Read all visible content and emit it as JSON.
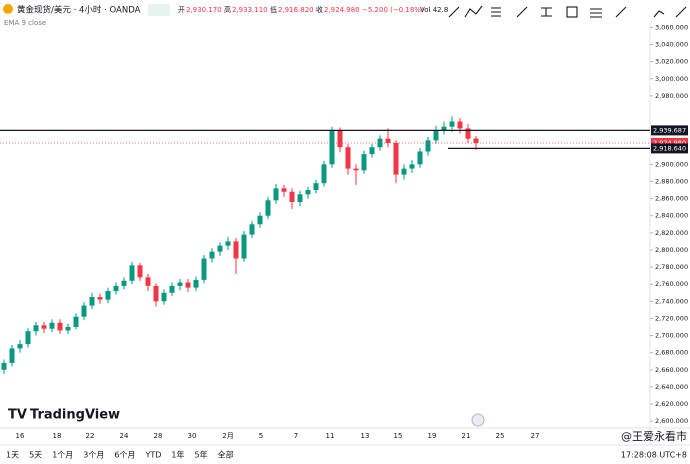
{
  "chart_data": {
    "type": "candlestick",
    "title": "黄金现货/美元 · 4小时 · OANDA",
    "ohlc_header": [
      {
        "label": "开",
        "value": "2,930.170"
      },
      {
        "label": "高",
        "value": "2,933.110"
      },
      {
        "label": "低",
        "value": "2,916.820"
      },
      {
        "label": "收",
        "value": "2,924.980"
      }
    ],
    "change": "−5.200 (−0.18%)",
    "volume": "Vol 42.8",
    "indicator": "EMA 9 close",
    "up_color": "#089981",
    "down_color": "#f23645",
    "open": [
      2660,
      2668,
      2685,
      2690,
      2705,
      2712,
      2708,
      2715,
      2706,
      2710,
      2722,
      2735,
      2745,
      2742,
      2752,
      2758,
      2764,
      2782,
      2768,
      2758,
      2740,
      2750,
      2758,
      2762,
      2756,
      2765,
      2790,
      2798,
      2805,
      2810,
      2790,
      2818,
      2830,
      2840,
      2858,
      2872,
      2868,
      2856,
      2865,
      2870,
      2878,
      2900,
      2940,
      2920,
      2895,
      2893,
      2912,
      2920,
      2930,
      2925,
      2888,
      2895,
      2900,
      2915,
      2928,
      2940,
      2944,
      2950,
      2942,
      2930.17
    ],
    "high": [
      2672,
      2689,
      2695,
      2709,
      2716,
      2716,
      2719,
      2719,
      2714,
      2726,
      2739,
      2750,
      2749,
      2756,
      2762,
      2768,
      2786,
      2785,
      2772,
      2761,
      2754,
      2762,
      2766,
      2766,
      2769,
      2794,
      2802,
      2809,
      2815,
      2814,
      2822,
      2834,
      2844,
      2862,
      2877,
      2876,
      2872,
      2869,
      2874,
      2882,
      2904,
      2944,
      2943,
      2924,
      2900,
      2916,
      2924,
      2934,
      2942,
      2928,
      2900,
      2905,
      2919,
      2932,
      2945,
      2950,
      2956,
      2954,
      2947,
      2933.11
    ],
    "low": [
      2655,
      2664,
      2680,
      2686,
      2700,
      2703,
      2704,
      2702,
      2702,
      2707,
      2718,
      2731,
      2737,
      2738,
      2748,
      2754,
      2760,
      2764,
      2752,
      2734,
      2736,
      2746,
      2753,
      2751,
      2752,
      2761,
      2785,
      2793,
      2800,
      2772,
      2786,
      2814,
      2826,
      2836,
      2854,
      2862,
      2848,
      2851,
      2860,
      2866,
      2874,
      2896,
      2914,
      2888,
      2876,
      2889,
      2908,
      2916,
      2920,
      2878,
      2882,
      2890,
      2896,
      2910,
      2924,
      2935,
      2938,
      2936,
      2925,
      2916.82
    ],
    "close": [
      2668,
      2685,
      2690,
      2705,
      2712,
      2708,
      2715,
      2706,
      2710,
      2722,
      2735,
      2745,
      2742,
      2752,
      2758,
      2764,
      2782,
      2768,
      2758,
      2740,
      2750,
      2758,
      2762,
      2756,
      2765,
      2790,
      2798,
      2805,
      2810,
      2790,
      2818,
      2830,
      2840,
      2858,
      2872,
      2868,
      2856,
      2865,
      2870,
      2878,
      2900,
      2940,
      2920,
      2895,
      2893,
      2912,
      2920,
      2930,
      2925,
      2888,
      2895,
      2900,
      2915,
      2928,
      2940,
      2944,
      2950,
      2942,
      2930,
      2924.98
    ],
    "x_labels": [
      "16",
      "18",
      "22",
      "24",
      "28",
      "30",
      "2月",
      "5",
      "7",
      "11",
      "13",
      "15",
      "19",
      "21",
      "25",
      "27"
    ],
    "ylim": [
      2592,
      3092
    ],
    "yticks": [
      {
        "value": 2600,
        "label": "2,600.000"
      },
      {
        "value": 2620,
        "label": "2,620.000"
      },
      {
        "value": 2640,
        "label": "2,640.000"
      },
      {
        "value": 2660,
        "label": "2,660.000"
      },
      {
        "value": 2680,
        "label": "2,680.000"
      },
      {
        "value": 2700,
        "label": "2,700.000"
      },
      {
        "value": 2720,
        "label": "2,720.000"
      },
      {
        "value": 2740,
        "label": "2,740.000"
      },
      {
        "value": 2760,
        "label": "2,760.000"
      },
      {
        "value": 2780,
        "label": "2,780.000"
      },
      {
        "value": 2800,
        "label": "2,800.000"
      },
      {
        "value": 2820,
        "label": "2,820.000"
      },
      {
        "value": 2840,
        "label": "2,840.000"
      },
      {
        "value": 2860,
        "label": "2,860.000"
      },
      {
        "value": 2880,
        "label": "2,880.000"
      },
      {
        "value": 2900,
        "label": "2,900.000"
      },
      {
        "value": 2980,
        "label": "2,980.000"
      },
      {
        "value": 3000,
        "label": "3,000.000"
      },
      {
        "value": 3020,
        "label": "3,020.000"
      },
      {
        "value": 3040,
        "label": "3,040.000"
      },
      {
        "value": 3060,
        "label": "3,060.000"
      }
    ],
    "levels": [
      {
        "value": 2939.687,
        "label": "2,939.687",
        "color": "#131722"
      },
      {
        "value": 2924.98,
        "label": "2,924.980",
        "color": "#f23645"
      },
      {
        "value": 2918.64,
        "label": "2,918.640",
        "color": "#131722"
      }
    ],
    "ranges": [
      "1天",
      "5天",
      "1个月",
      "3个月",
      "6个月",
      "YTD",
      "1年",
      "5年",
      "全部"
    ],
    "clock": "17:28:08 UTC+8",
    "brand": "TradingView",
    "watermark": "@王爱永看市"
  }
}
